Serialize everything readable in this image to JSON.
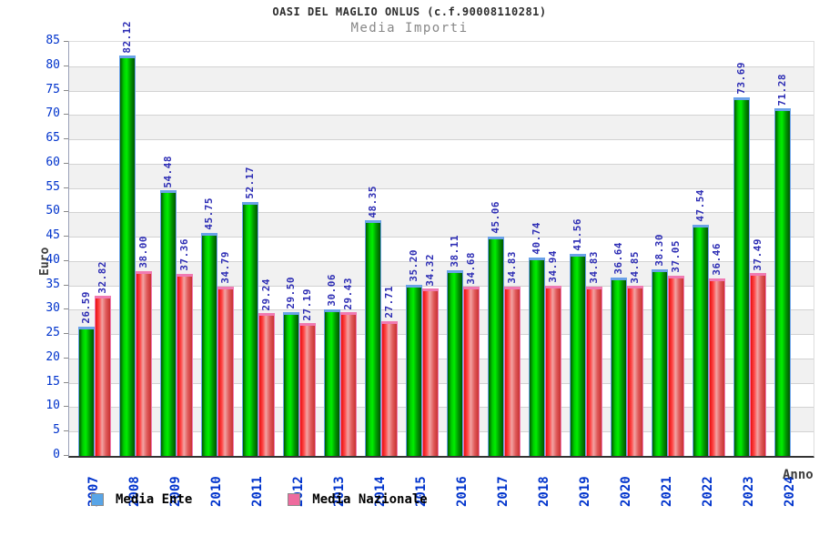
{
  "chart_data": {
    "type": "bar",
    "title": "OASI DEL MAGLIO ONLUS (c.f.90008110281)",
    "subtitle": "Media Importi",
    "ylabel": "Euro",
    "xlabel": "Anno",
    "ylim": [
      0,
      85
    ],
    "ytick_step": 5,
    "grid": "horizontal",
    "legend_position": "bottom-left",
    "categories": [
      "2007",
      "2008",
      "2009",
      "2010",
      "2011",
      "2012",
      "2013",
      "2014",
      "2015",
      "2016",
      "2017",
      "2018",
      "2019",
      "2020",
      "2021",
      "2022",
      "2023",
      "2024"
    ],
    "series": [
      {
        "name": "Media Ente",
        "values": [
          26.59,
          82.12,
          54.48,
          45.75,
          52.17,
          29.5,
          30.06,
          48.35,
          35.2,
          38.11,
          45.06,
          40.74,
          41.56,
          36.64,
          38.3,
          47.54,
          73.69,
          71.28
        ]
      },
      {
        "name": "Media Nazionale",
        "values": [
          32.82,
          38.0,
          37.36,
          34.79,
          29.24,
          27.19,
          29.43,
          27.71,
          34.32,
          34.68,
          34.83,
          34.94,
          34.83,
          34.85,
          37.05,
          36.46,
          37.49,
          null
        ]
      }
    ]
  },
  "colors": {
    "title": "#2d2d2d",
    "subtitle": "#878787",
    "axis_label": "#3d3d3d",
    "tick_label": "#0033cc",
    "value_label": "#2d2db4",
    "grid_line": "#d2d2d2",
    "band_fill": "#f1f1f1",
    "band_white": "#ffffff",
    "tick_mark": "#888888",
    "ente_gradient": [
      "#005a00",
      "#00cc00",
      "#00ee00",
      "#009900",
      "#005500"
    ],
    "ente_border": "#6aa2e8",
    "naz_gradient": [
      "#e80f0f",
      "#ff4a4a",
      "#f2a3a3",
      "#e05a5a",
      "#c83232"
    ],
    "naz_border": "#f07ab2",
    "legend_ente_fill": "#58a5e8",
    "legend_naz_fill": "#ee6b9e",
    "legend_swatch_border": "#8a8a8a"
  }
}
